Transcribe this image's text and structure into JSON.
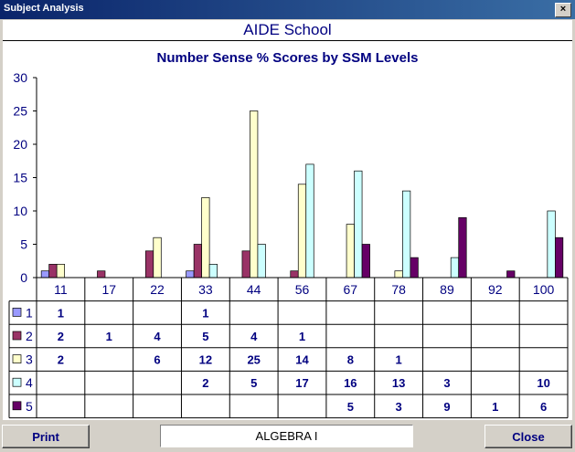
{
  "window": {
    "title": "Subject Analysis",
    "close_glyph": "×"
  },
  "header": {
    "school": "AIDE School"
  },
  "footer": {
    "print_label": "Print",
    "course": "ALGEBRA I",
    "close_label": "Close"
  },
  "colors": {
    "navy": "#000080",
    "level1": "#9999ff",
    "level2": "#993366",
    "level3": "#ffffcc",
    "level4": "#ccffff",
    "level5": "#660066"
  },
  "chart_data": {
    "type": "bar",
    "title": "Number Sense % Scores by SSM Levels",
    "categories": [
      "11",
      "17",
      "22",
      "33",
      "44",
      "56",
      "67",
      "78",
      "89",
      "92",
      "100"
    ],
    "ylim": [
      0,
      30
    ],
    "yticks": [
      0,
      5,
      10,
      15,
      20,
      25,
      30
    ],
    "grid": false,
    "legend": "table-left",
    "series": [
      {
        "name": "1",
        "color": "#9999ff",
        "values": [
          1,
          null,
          null,
          1,
          null,
          null,
          null,
          null,
          null,
          null,
          null
        ]
      },
      {
        "name": "2",
        "color": "#993366",
        "values": [
          2,
          1,
          4,
          5,
          4,
          1,
          null,
          null,
          null,
          null,
          null
        ]
      },
      {
        "name": "3",
        "color": "#ffffcc",
        "values": [
          2,
          null,
          6,
          12,
          25,
          14,
          8,
          1,
          null,
          null,
          null
        ]
      },
      {
        "name": "4",
        "color": "#ccffff",
        "values": [
          null,
          null,
          null,
          2,
          5,
          17,
          16,
          13,
          3,
          null,
          10
        ]
      },
      {
        "name": "5",
        "color": "#660066",
        "values": [
          null,
          null,
          null,
          null,
          null,
          null,
          5,
          3,
          9,
          1,
          6
        ]
      }
    ]
  }
}
